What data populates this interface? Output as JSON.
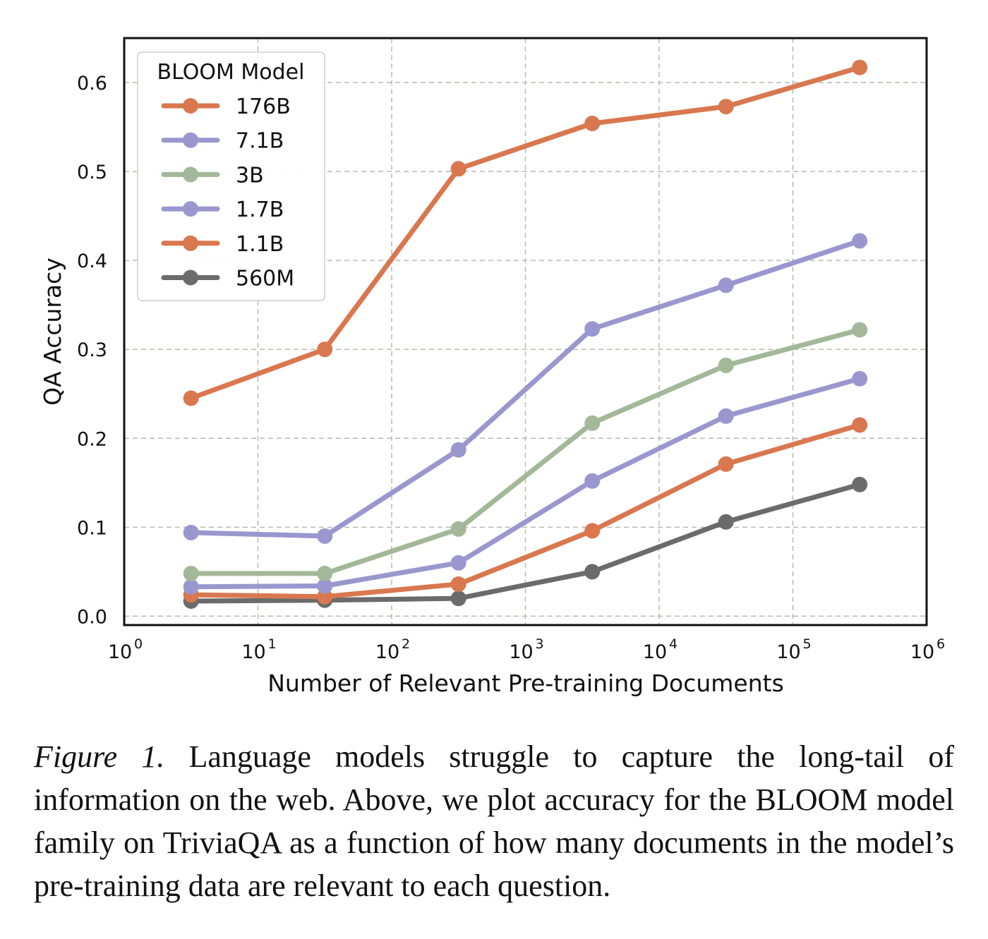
{
  "chart_data": {
    "type": "line",
    "title": "",
    "xlabel": "Number of Relevant Pre-training Documents",
    "ylabel": "QA Accuracy",
    "x_scale": "log",
    "xlim": [
      1,
      1000000
    ],
    "ylim": [
      -0.01,
      0.65
    ],
    "x_ticks": [
      {
        "value": 1,
        "base": "10",
        "exp": "0"
      },
      {
        "value": 10,
        "base": "10",
        "exp": "1"
      },
      {
        "value": 100,
        "base": "10",
        "exp": "2"
      },
      {
        "value": 1000,
        "base": "10",
        "exp": "3"
      },
      {
        "value": 10000,
        "base": "10",
        "exp": "4"
      },
      {
        "value": 100000,
        "base": "10",
        "exp": "5"
      },
      {
        "value": 1000000,
        "base": "10",
        "exp": "6"
      }
    ],
    "y_ticks": [
      {
        "value": 0.0,
        "label": "0.0"
      },
      {
        "value": 0.1,
        "label": "0.1"
      },
      {
        "value": 0.2,
        "label": "0.2"
      },
      {
        "value": 0.3,
        "label": "0.3"
      },
      {
        "value": 0.4,
        "label": "0.4"
      },
      {
        "value": 0.5,
        "label": "0.5"
      },
      {
        "value": 0.6,
        "label": "0.6"
      }
    ],
    "grid": true,
    "legend": {
      "title": "BLOOM Model",
      "placement": "top-left"
    },
    "x": [
      3.16,
      31.6,
      316,
      3160,
      31600,
      316000
    ],
    "series": [
      {
        "name": "176B",
        "color": "#d9774f",
        "values": [
          0.245,
          0.3,
          0.503,
          0.554,
          0.573,
          0.617
        ]
      },
      {
        "name": "7.1B",
        "color": "#9a97cf",
        "values": [
          0.094,
          0.09,
          0.187,
          0.323,
          0.372,
          0.422
        ]
      },
      {
        "name": "3B",
        "color": "#a3b899",
        "values": [
          0.048,
          0.048,
          0.098,
          0.217,
          0.282,
          0.322
        ]
      },
      {
        "name": "1.7B",
        "color": "#9a97cf",
        "values": [
          0.033,
          0.034,
          0.06,
          0.152,
          0.225,
          0.267
        ]
      },
      {
        "name": "1.1B",
        "color": "#d9774f",
        "values": [
          0.024,
          0.022,
          0.036,
          0.096,
          0.171,
          0.215
        ]
      },
      {
        "name": "560M",
        "color": "#6b6b6b",
        "values": [
          0.017,
          0.018,
          0.02,
          0.05,
          0.106,
          0.148
        ]
      }
    ]
  },
  "caption": {
    "lead": "Figure 1.",
    "text": "Language models struggle to capture the long-tail of information on the web. Above, we plot accuracy for the BLOOM model family on TriviaQA as a function of how many documents in the model’s pre-training data are relevant to each question."
  }
}
